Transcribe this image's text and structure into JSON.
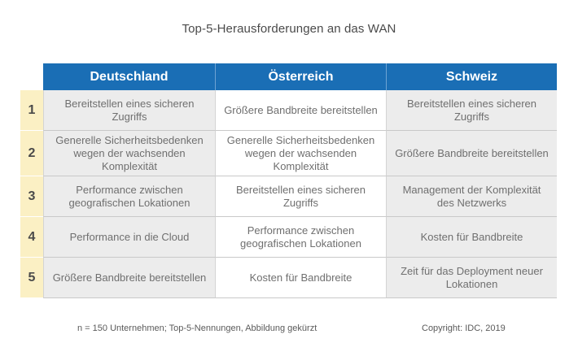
{
  "chart_data": {
    "type": "table",
    "title": "Top-5-Herausforderungen an das WAN",
    "columns": [
      "Deutschland",
      "Österreich",
      "Schweiz"
    ],
    "rows": [
      {
        "rank": "1",
        "cells": [
          "Bereitstellen eines sicheren Zugriffs",
          "Größere Bandbreite bereitstellen",
          "Bereitstellen eines sicheren Zugriffs"
        ]
      },
      {
        "rank": "2",
        "cells": [
          "Generelle Sicherheitsbedenken wegen der wachsenden Komplexität",
          "Generelle Sicherheitsbedenken wegen der wachsenden Komplexität",
          "Größere Bandbreite bereitstellen"
        ]
      },
      {
        "rank": "3",
        "cells": [
          "Performance zwischen geografischen Lokationen",
          "Bereitstellen eines sicheren Zugriffs",
          "Management der Komplexität des Netzwerks"
        ]
      },
      {
        "rank": "4",
        "cells": [
          "Performance in die Cloud",
          "Performance zwischen geografischen Lokationen",
          "Kosten für Bandbreite"
        ]
      },
      {
        "rank": "5",
        "cells": [
          "Größere Bandbreite bereitstellen",
          "Kosten für Bandbreite",
          "Zeit für das Deployment neuer Lokationen"
        ]
      }
    ],
    "footnote": "n = 150 Unternehmen; Top-5-Nennungen, Abbildung gekürzt",
    "copyright": "Copyright: IDC, 2019"
  },
  "colors": {
    "header_bg": "#1a6eb5",
    "rank_bg": "#fbf0c4",
    "shaded_cell": "#ececec"
  }
}
